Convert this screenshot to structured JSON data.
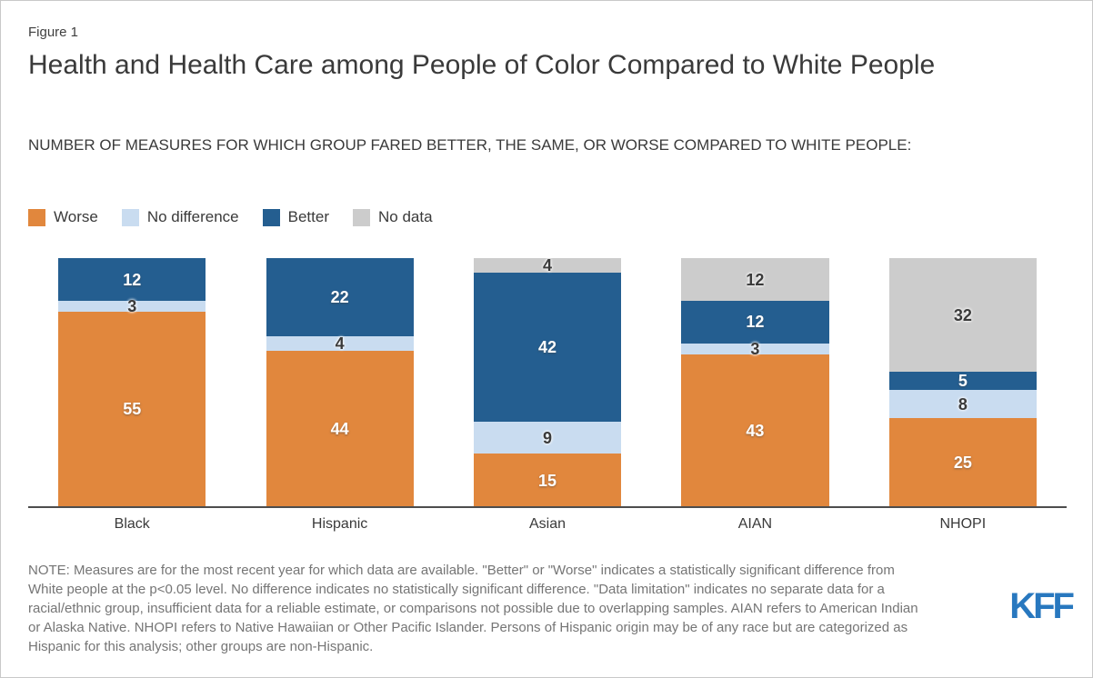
{
  "figure_label": "Figure 1",
  "title": "Health and Health Care among People of Color Compared to White People",
  "subtitle": "NUMBER OF MEASURES FOR WHICH GROUP FARED BETTER, THE SAME, OR WORSE COMPARED TO WHITE PEOPLE:",
  "chart_data": {
    "type": "bar",
    "subtype": "stacked",
    "title": "Health and Health Care among People of Color Compared to White People",
    "categories": [
      "Black",
      "Hispanic",
      "Asian",
      "AIAN",
      "NHOPI"
    ],
    "series": [
      {
        "name": "Worse",
        "color": "#E1873D",
        "label_color": "#FFFFFF",
        "values": [
          55,
          44,
          15,
          43,
          25
        ]
      },
      {
        "name": "No difference",
        "color": "#C9DCF0",
        "label_color": "#3A3A3A",
        "values": [
          3,
          4,
          9,
          3,
          8
        ]
      },
      {
        "name": "Better",
        "color": "#245E90",
        "label_color": "#FFFFFF",
        "values": [
          12,
          22,
          42,
          12,
          5
        ]
      },
      {
        "name": "No data",
        "color": "#CCCCCC",
        "label_color": "#3A3A3A",
        "values": [
          0,
          0,
          4,
          12,
          32
        ]
      }
    ],
    "stack_total": 70,
    "stack_order_bottom_to_top": [
      "Worse",
      "No difference",
      "Better",
      "No data"
    ],
    "legend_position": "top-left",
    "grid": false,
    "axis_color": "#4D4D4D"
  },
  "footer": {
    "note_lines": [
      "NOTE: Measures are for the most recent year for which data are available. \"Better\" or \"Worse\" indicates a statistically significant difference from",
      "White people at the p<0.05 level. No difference indicates no statistically significant difference. \"Data limitation\" indicates no separate data for a",
      "racial/ethnic group, insufficient data for a reliable estimate, or comparisons not possible due to overlapping samples. AIAN refers to American Indian",
      "or Alaska Native. NHOPI refers to Native Hawaiian or Other Pacific Islander. Persons of Hispanic origin may be of any race but are categorized as",
      "Hispanic for this analysis; other groups are non-Hispanic."
    ],
    "logo_text": "KFF",
    "logo_color": "#2878BF"
  }
}
